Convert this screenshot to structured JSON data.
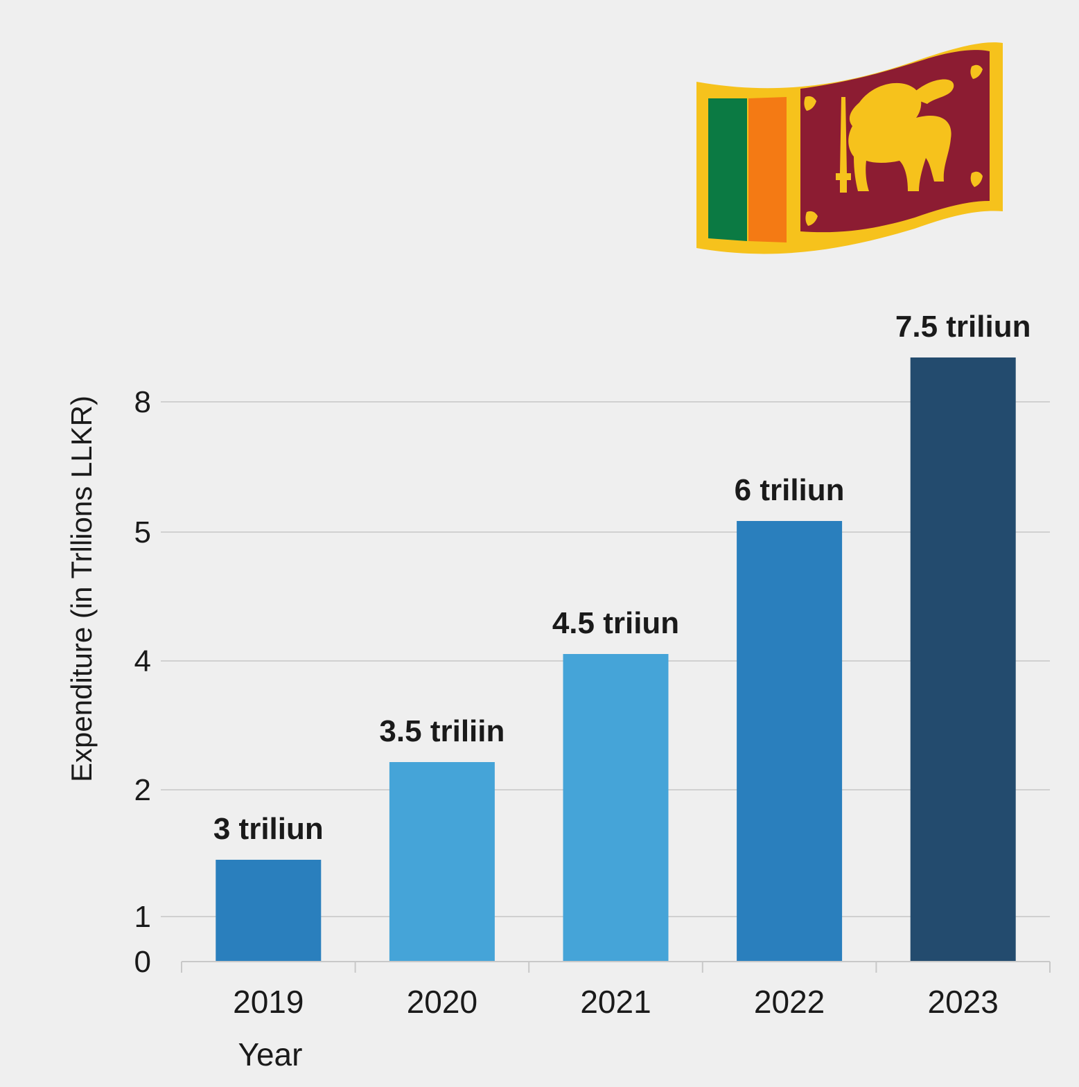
{
  "chart_data": {
    "type": "bar",
    "title": "",
    "xlabel": "Year",
    "ylabel": "Expenditure (in Trllions LLKR)",
    "categories": [
      "2019",
      "2020",
      "2021",
      "2022",
      "2023"
    ],
    "values": [
      3,
      3.5,
      4.5,
      6,
      7.5
    ],
    "value_labels": [
      "3 triliun",
      "3.5 triliin",
      "4.5 triiun",
      "6 triliun",
      "7.5 triliun"
    ],
    "y_ticks": [
      0,
      1,
      2,
      4,
      5,
      8
    ],
    "y_tick_labels": [
      "0",
      "1",
      "2",
      "4",
      "5",
      "8"
    ],
    "grid": true,
    "bar_colors": [
      "#2a7fbd",
      "#45a4d8",
      "#45a4d8",
      "#2a7fbd",
      "#234b6e"
    ]
  },
  "flag": {
    "icon": "sri-lanka-flag-icon",
    "colors": {
      "border": "#f6c21c",
      "green": "#0b7a43",
      "orange": "#f47a14",
      "maroon": "#8c1c32",
      "lion": "#f6c21c"
    }
  }
}
